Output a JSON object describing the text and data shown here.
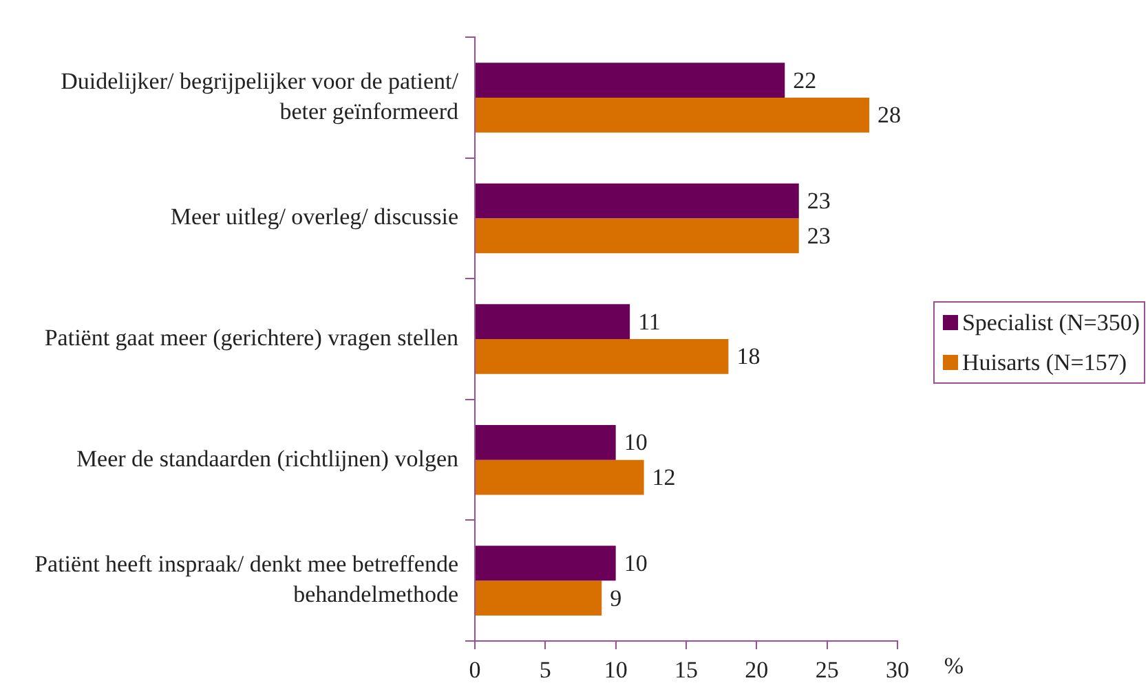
{
  "chart_data": {
    "type": "bar",
    "orientation": "horizontal",
    "categories": [
      "Duidelijker/ begrijpelijker voor de patient/ beter geïnformeerd",
      "Meer uitleg/ overleg/ discussie",
      "Patiënt gaat meer (gerichtere) vragen stellen",
      "Meer de standaarden (richtlijnen) volgen",
      "Patiënt heeft inspraak/ denkt mee betreffende behandelmethode"
    ],
    "series": [
      {
        "name": "Specialist (N=350)",
        "color": "#6a0058",
        "values": [
          22,
          23,
          11,
          10,
          10
        ]
      },
      {
        "name": "Huisarts (N=157)",
        "color": "#d77000",
        "values": [
          28,
          23,
          18,
          12,
          9
        ]
      }
    ],
    "xlabel": "%",
    "xlim": [
      0,
      30
    ],
    "xticks": [
      0,
      5,
      10,
      15,
      20,
      25,
      30
    ],
    "data_labels": true,
    "legend": "right",
    "grid": false
  }
}
